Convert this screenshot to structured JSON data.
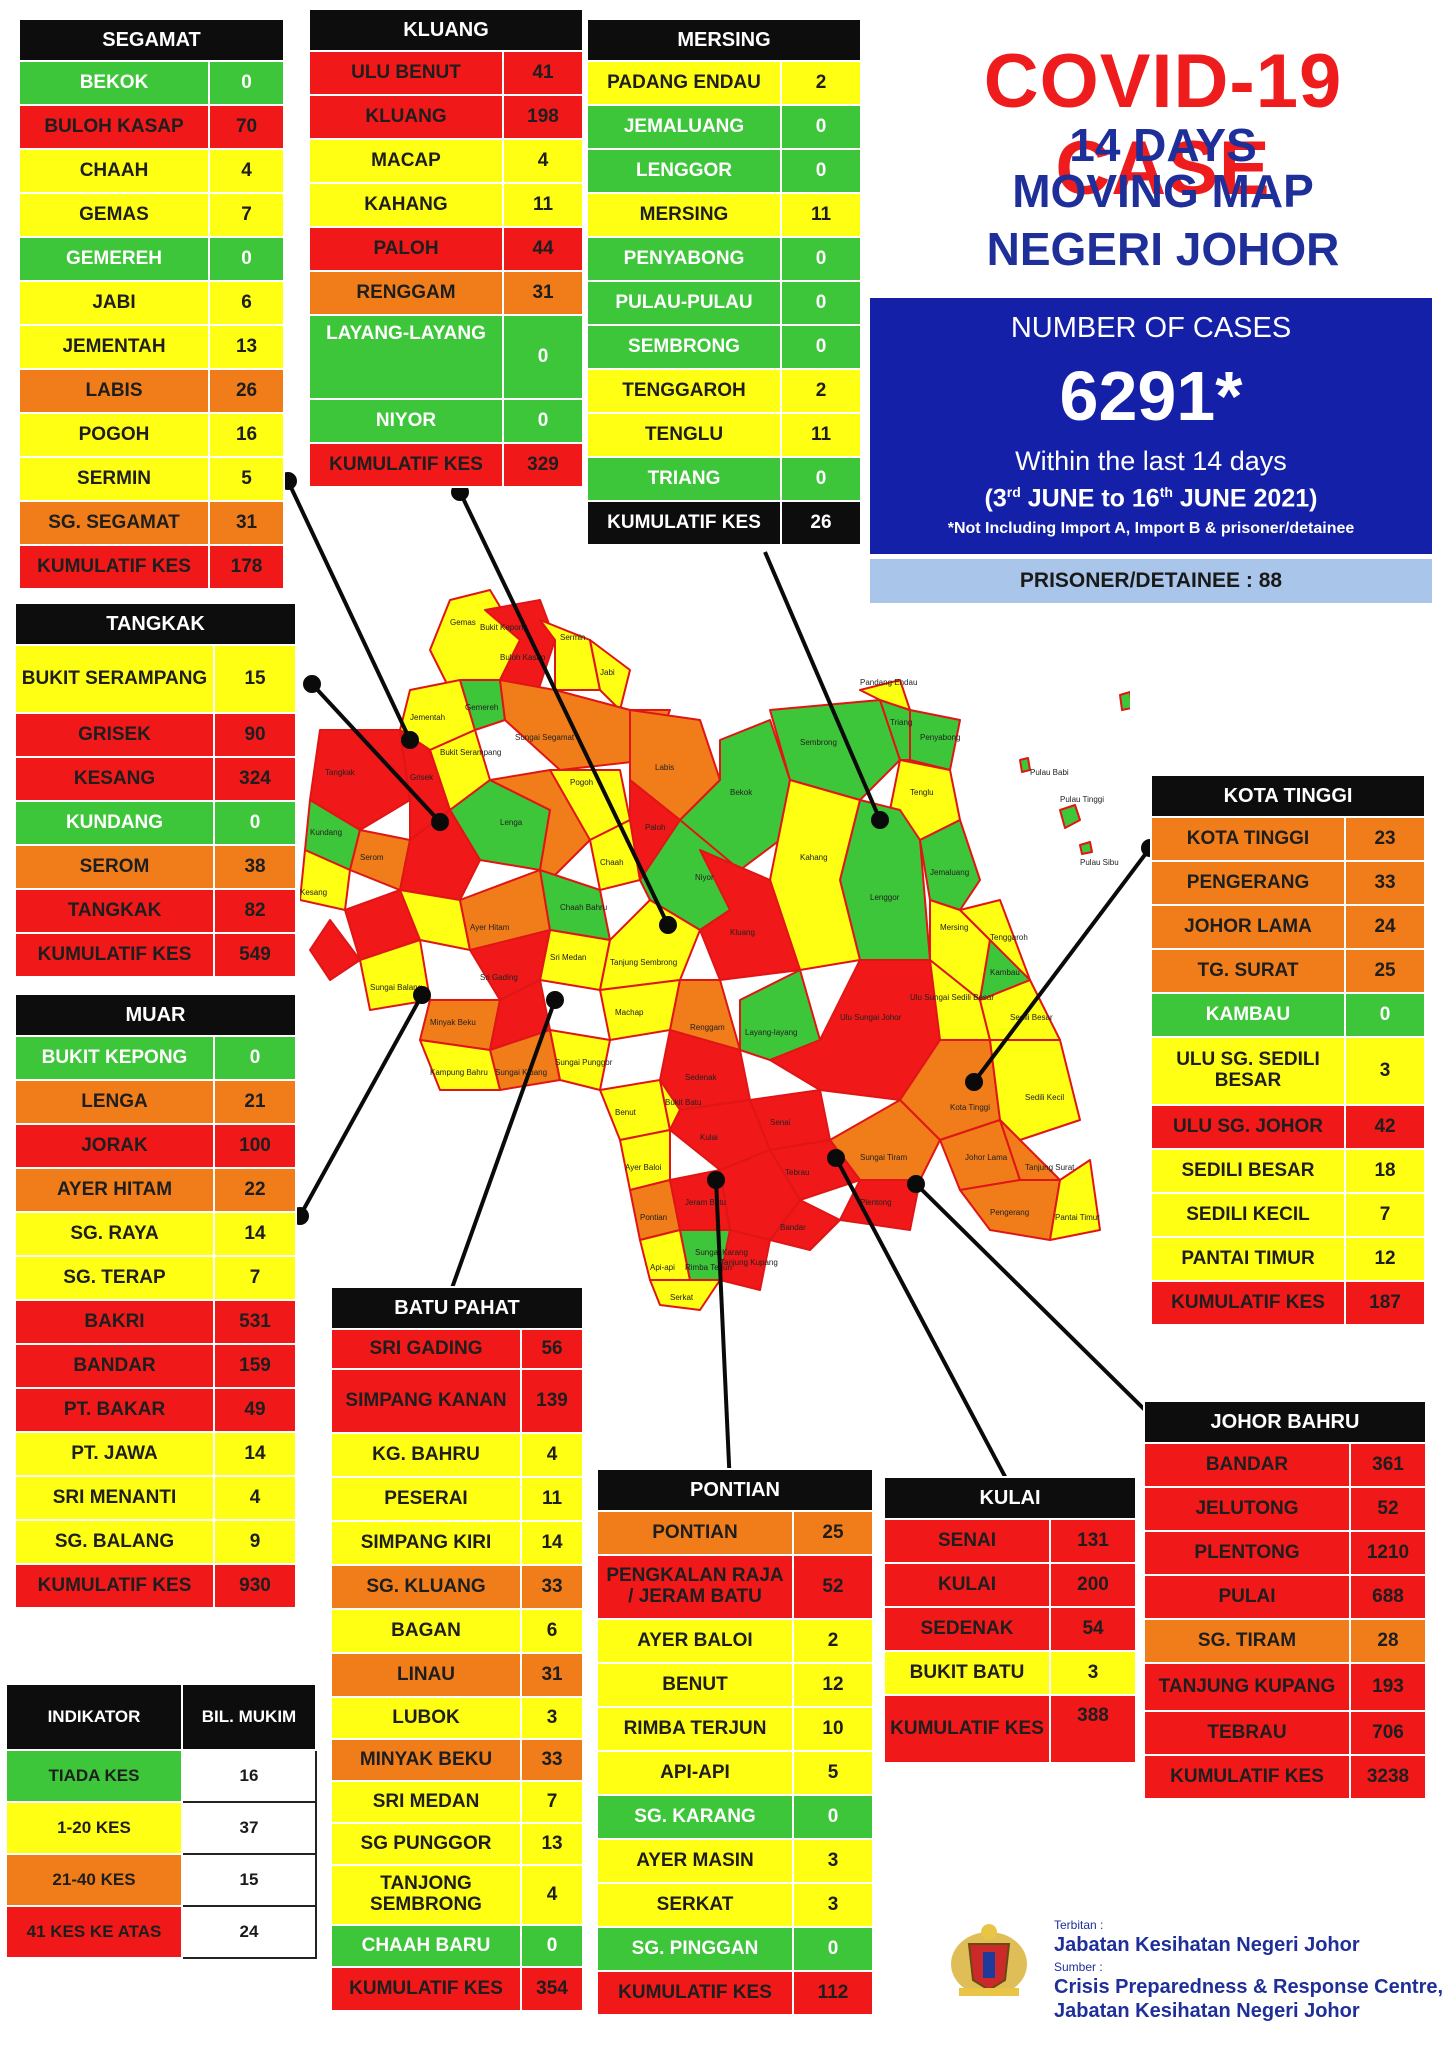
{
  "title": {
    "line1": "COVID-19 CASE",
    "line2": "14 DAYS",
    "line3": "MOVING MAP",
    "line4": "NEGERI JOHOR"
  },
  "summary": {
    "heading": "NUMBER OF CASES",
    "total": "6291*",
    "period_label": "Within the last 14 days",
    "date_start_day": "3",
    "date_start_sup": "rd",
    "date_start_rest": "JUNE to",
    "date_end_day": "16",
    "date_end_sup": "th",
    "date_end_rest": "JUNE 2021)",
    "note": "*Not Including Import A, Import B & prisoner/detainee",
    "prisoner": "PRISONER/DETAINEE : 88"
  },
  "colors": {
    "green": "#3ec63a",
    "yellow": "#ffff14",
    "orange": "#f07d1a",
    "red": "#f01818",
    "title_red": "#ee1c1c",
    "title_blue": "#1f2f9a",
    "panel_blue": "#1420a8",
    "prisoner_blue": "#a9c5ea"
  },
  "districts": {
    "segamat": {
      "name": "SEGAMAT",
      "rows": [
        {
          "name": "BEKOK",
          "value": "0",
          "level": "g"
        },
        {
          "name": "BULOH KASAP",
          "value": "70",
          "level": "r"
        },
        {
          "name": "CHAAH",
          "value": "4",
          "level": "y"
        },
        {
          "name": "GEMAS",
          "value": "7",
          "level": "y"
        },
        {
          "name": "GEMEREH",
          "value": "0",
          "level": "g"
        },
        {
          "name": "JABI",
          "value": "6",
          "level": "y"
        },
        {
          "name": "JEMENTAH",
          "value": "13",
          "level": "y"
        },
        {
          "name": "LABIS",
          "value": "26",
          "level": "o"
        },
        {
          "name": "POGOH",
          "value": "16",
          "level": "y"
        },
        {
          "name": "SERMIN",
          "value": "5",
          "level": "y"
        },
        {
          "name": "SG. SEGAMAT",
          "value": "31",
          "level": "o"
        }
      ],
      "total_label": "KUMULATIF KES",
      "total": "178"
    },
    "kluang": {
      "name": "KLUANG",
      "rows": [
        {
          "name": "ULU BENUT",
          "value": "41",
          "level": "r"
        },
        {
          "name": "KLUANG",
          "value": "198",
          "level": "r"
        },
        {
          "name": "MACAP",
          "value": "4",
          "level": "y"
        },
        {
          "name": "KAHANG",
          "value": "11",
          "level": "y"
        },
        {
          "name": "PALOH",
          "value": "44",
          "level": "r"
        },
        {
          "name": "RENGGAM",
          "value": "31",
          "level": "o"
        },
        {
          "name": "LAYANG-LAYANG",
          "value": "0",
          "level": "g"
        },
        {
          "name": "NIYOR",
          "value": "0",
          "level": "g"
        }
      ],
      "total_label": "KUMULATIF KES",
      "total": "329"
    },
    "mersing": {
      "name": "MERSING",
      "rows": [
        {
          "name": "PADANG ENDAU",
          "value": "2",
          "level": "y"
        },
        {
          "name": "JEMALUANG",
          "value": "0",
          "level": "g"
        },
        {
          "name": "LENGGOR",
          "value": "0",
          "level": "g"
        },
        {
          "name": "MERSING",
          "value": "11",
          "level": "y"
        },
        {
          "name": "PENYABONG",
          "value": "0",
          "level": "g"
        },
        {
          "name": "PULAU-PULAU",
          "value": "0",
          "level": "g"
        },
        {
          "name": "SEMBRONG",
          "value": "0",
          "level": "g"
        },
        {
          "name": "TENGGAROH",
          "value": "2",
          "level": "y"
        },
        {
          "name": "TENGLU",
          "value": "11",
          "level": "y"
        },
        {
          "name": "TRIANG",
          "value": "0",
          "level": "g"
        }
      ],
      "total_label": "KUMULATIF KES",
      "total": "26"
    },
    "tangkak": {
      "name": "TANGKAK",
      "rows": [
        {
          "name": "BUKIT SERAMPANG",
          "value": "15",
          "level": "y"
        },
        {
          "name": "GRISEK",
          "value": "90",
          "level": "r"
        },
        {
          "name": "KESANG",
          "value": "324",
          "level": "r"
        },
        {
          "name": "KUNDANG",
          "value": "0",
          "level": "g"
        },
        {
          "name": "SEROM",
          "value": "38",
          "level": "o"
        },
        {
          "name": "TANGKAK",
          "value": "82",
          "level": "r"
        }
      ],
      "total_label": "KUMULATIF KES",
      "total": "549"
    },
    "muar": {
      "name": "MUAR",
      "rows": [
        {
          "name": "BUKIT KEPONG",
          "value": "0",
          "level": "g"
        },
        {
          "name": "LENGA",
          "value": "21",
          "level": "o"
        },
        {
          "name": "JORAK",
          "value": "100",
          "level": "r"
        },
        {
          "name": "AYER HITAM",
          "value": "22",
          "level": "o"
        },
        {
          "name": "SG. RAYA",
          "value": "14",
          "level": "y"
        },
        {
          "name": "SG. TERAP",
          "value": "7",
          "level": "y"
        },
        {
          "name": "BAKRI",
          "value": "531",
          "level": "r"
        },
        {
          "name": "BANDAR",
          "value": "159",
          "level": "r"
        },
        {
          "name": "PT. BAKAR",
          "value": "49",
          "level": "r"
        },
        {
          "name": "PT. JAWA",
          "value": "14",
          "level": "y"
        },
        {
          "name": "SRI MENANTI",
          "value": "4",
          "level": "y"
        },
        {
          "name": "SG. BALANG",
          "value": "9",
          "level": "y"
        }
      ],
      "total_label": "KUMULATIF KES",
      "total": "930"
    },
    "kota_tinggi": {
      "name": "KOTA TINGGI",
      "rows": [
        {
          "name": "KOTA TINGGI",
          "value": "23",
          "level": "o"
        },
        {
          "name": "PENGERANG",
          "value": "33",
          "level": "o"
        },
        {
          "name": "JOHOR LAMA",
          "value": "24",
          "level": "o"
        },
        {
          "name": "TG. SURAT",
          "value": "25",
          "level": "o"
        },
        {
          "name": "KAMBAU",
          "value": "0",
          "level": "g"
        },
        {
          "name": "ULU SG. SEDILI BESAR",
          "value": "3",
          "level": "y"
        },
        {
          "name": "ULU  SG. JOHOR",
          "value": "42",
          "level": "r"
        },
        {
          "name": "SEDILI BESAR",
          "value": "18",
          "level": "y"
        },
        {
          "name": "SEDILI KECIL",
          "value": "7",
          "level": "y"
        },
        {
          "name": "PANTAI TIMUR",
          "value": "12",
          "level": "y"
        }
      ],
      "total_label": "KUMULATIF KES",
      "total": "187"
    },
    "batu_pahat": {
      "name": "BATU PAHAT",
      "rows": [
        {
          "name": "SRI GADING",
          "value": "56",
          "level": "r"
        },
        {
          "name": "SIMPANG KANAN",
          "value": "139",
          "level": "r"
        },
        {
          "name": "KG. BAHRU",
          "value": "4",
          "level": "y"
        },
        {
          "name": "PESERAI",
          "value": "11",
          "level": "y"
        },
        {
          "name": "SIMPANG KIRI",
          "value": "14",
          "level": "y"
        },
        {
          "name": "SG. KLUANG",
          "value": "33",
          "level": "o"
        },
        {
          "name": "BAGAN",
          "value": "6",
          "level": "y"
        },
        {
          "name": "LINAU",
          "value": "31",
          "level": "o"
        },
        {
          "name": "LUBOK",
          "value": "3",
          "level": "y"
        },
        {
          "name": "MINYAK BEKU",
          "value": "33",
          "level": "o"
        },
        {
          "name": "SRI MEDAN",
          "value": "7",
          "level": "y"
        },
        {
          "name": "SG PUNGGOR",
          "value": "13",
          "level": "y"
        },
        {
          "name": "TANJONG SEMBRONG",
          "value": "4",
          "level": "y"
        },
        {
          "name": "CHAAH BARU",
          "value": "0",
          "level": "g"
        }
      ],
      "total_label": "KUMULATIF KES",
      "total": "354"
    },
    "pontian": {
      "name": "PONTIAN",
      "rows": [
        {
          "name": "PONTIAN",
          "value": "25",
          "level": "o"
        },
        {
          "name": "PENGKALAN RAJA / JERAM BATU",
          "value": "52",
          "level": "r"
        },
        {
          "name": "AYER BALOI",
          "value": "2",
          "level": "y"
        },
        {
          "name": "BENUT",
          "value": "12",
          "level": "y"
        },
        {
          "name": "RIMBA TERJUN",
          "value": "10",
          "level": "y"
        },
        {
          "name": "API-API",
          "value": "5",
          "level": "y"
        },
        {
          "name": "SG. KARANG",
          "value": "0",
          "level": "g"
        },
        {
          "name": "AYER MASIN",
          "value": "3",
          "level": "y"
        },
        {
          "name": "SERKAT",
          "value": "3",
          "level": "y"
        },
        {
          "name": "SG. PINGGAN",
          "value": "0",
          "level": "g"
        }
      ],
      "total_label": "KUMULATIF KES",
      "total": "112"
    },
    "kulai": {
      "name": "KULAI",
      "rows": [
        {
          "name": "SENAI",
          "value": "131",
          "level": "r"
        },
        {
          "name": "KULAI",
          "value": "200",
          "level": "r"
        },
        {
          "name": "SEDENAK",
          "value": "54",
          "level": "r"
        },
        {
          "name": "BUKIT BATU",
          "value": "3",
          "level": "y"
        }
      ],
      "total_label": "KUMULATIF KES",
      "total": "388"
    },
    "johor_bahru": {
      "name": "JOHOR BAHRU",
      "rows": [
        {
          "name": "BANDAR",
          "value": "361",
          "level": "r"
        },
        {
          "name": "JELUTONG",
          "value": "52",
          "level": "r"
        },
        {
          "name": "PLENTONG",
          "value": "1210",
          "level": "r"
        },
        {
          "name": "PULAI",
          "value": "688",
          "level": "r"
        },
        {
          "name": "SG. TIRAM",
          "value": "28",
          "level": "o"
        },
        {
          "name": "TANJUNG KUPANG",
          "value": "193",
          "level": "r"
        },
        {
          "name": "TEBRAU",
          "value": "706",
          "level": "r"
        }
      ],
      "total_label": "KUMULATIF KES",
      "total": "3238"
    }
  },
  "legend": {
    "header_indicator": "INDIKATOR",
    "header_count": "BIL. MUKIM",
    "rows": [
      {
        "label": "TIADA KES",
        "count": "16",
        "level": "g"
      },
      {
        "label": "1-20 KES",
        "count": "37",
        "level": "y"
      },
      {
        "label": "21-40 KES",
        "count": "15",
        "level": "o"
      },
      {
        "label": "41 KES KE ATAS",
        "count": "24",
        "level": "r"
      }
    ]
  },
  "footer": {
    "published_by_label": "Terbitan :",
    "published_by": "Jabatan Kesihatan Negeri Johor",
    "source_label": "Sumber :",
    "source_line1": "Crisis Preparedness & Response Centre,",
    "source_line2": "Jabatan Kesihatan Negeri Johor"
  },
  "map_labels": [
    "Gemas",
    "Bukit Kepong",
    "Sermin",
    "Jabi",
    "Buloh Kasap",
    "Jementah",
    "Gemereh",
    "Sungai Segamat",
    "Pogoh",
    "Labis",
    "Bekok",
    "Sembrong",
    "Pandang Endau",
    "Triang",
    "Penyabong",
    "Tenglu",
    "Pulau Babi",
    "Pulau Tinggi",
    "Pulau Sibu",
    "Jemaluang",
    "Mersing",
    "Tenggaroh",
    "Lenggor",
    "Kahang",
    "Chaah",
    "Tangkak",
    "Grisek",
    "Bukit Serampang",
    "Kundang",
    "Serom",
    "Kesang",
    "Lenga",
    "Chaah Bahru",
    "Niyor",
    "Paloh",
    "Kluang",
    "Ayer Hitam",
    "Sri Medan",
    "Tanjung Sembrong",
    "Sungai Balang",
    "Ulu Sungai Sedili Besar",
    "Sedili Besar",
    "Kambau",
    "Ulu Sungai Johor",
    "Renggam",
    "Layang-layang",
    "Machap",
    "Sri Gading",
    "Kota Tinggi",
    "Sedili Kecil",
    "Johor Lama",
    "Tanjung Surat",
    "Pengerang",
    "Pantai Timur",
    "Sungai Tiram",
    "Tebrau",
    "Plentong",
    "Senai",
    "Kulai",
    "Sedenak",
    "Bukit Batu",
    "Bandar",
    "Tanjung Kupang",
    "Pontian",
    "Benut",
    "Ayer Baloi",
    "Minyak Beku",
    "Kampung Bahru",
    "Sungai Punggor",
    "Sungai Kluang",
    "Serkat",
    "Jeram Batu",
    "Api-api",
    "Rimba Terjun",
    "Sungai Karang"
  ]
}
